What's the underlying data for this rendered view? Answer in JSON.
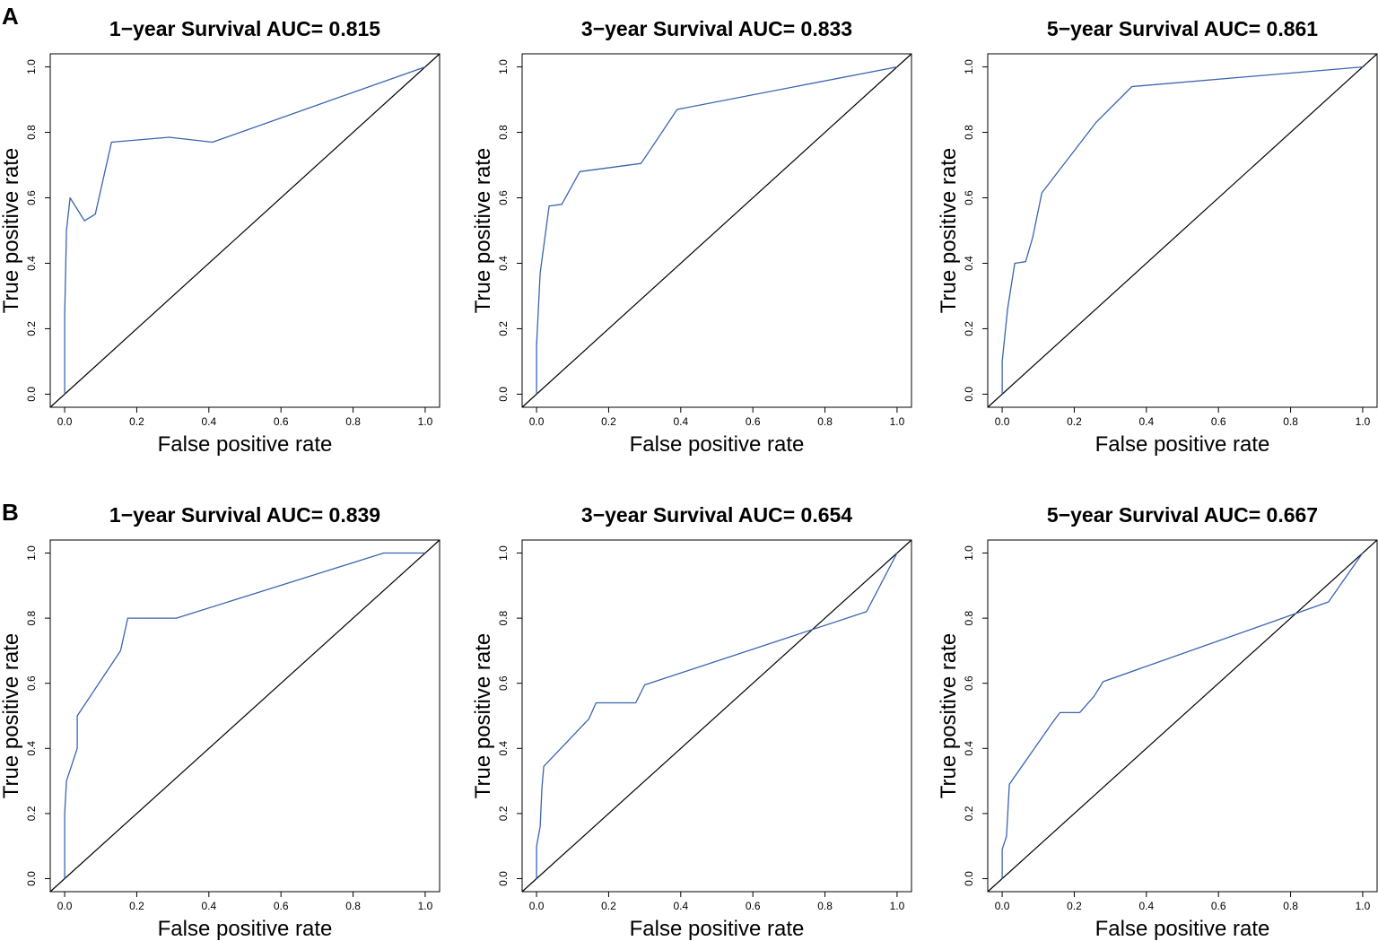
{
  "panel_labels": [
    "A",
    "B"
  ],
  "chart_data": [
    {
      "type": "line",
      "panel": "A",
      "title": "1−year Survival AUC= 0.815",
      "xlabel": "False positive rate",
      "ylabel": "True positive rate",
      "xlim": [
        0,
        1
      ],
      "ylim": [
        0,
        1
      ],
      "xticks": [
        "0.0",
        "0.2",
        "0.4",
        "0.6",
        "0.8",
        "1.0"
      ],
      "yticks": [
        "0.0",
        "0.2",
        "0.4",
        "0.6",
        "0.8",
        "1.0"
      ],
      "color": "#3a64b0",
      "series": [
        {
          "name": "ROC",
          "x": [
            0,
            0,
            0.005,
            0.015,
            0.055,
            0.085,
            0.13,
            0.29,
            0.41,
            1.0
          ],
          "y": [
            0,
            0.24,
            0.5,
            0.6,
            0.53,
            0.55,
            0.77,
            0.785,
            0.77,
            1.0
          ]
        }
      ]
    },
    {
      "type": "line",
      "panel": "A",
      "title": "3−year Survival AUC= 0.833",
      "xlabel": "False positive rate",
      "ylabel": "True positive rate",
      "xlim": [
        0,
        1
      ],
      "ylim": [
        0,
        1
      ],
      "xticks": [
        "0.0",
        "0.2",
        "0.4",
        "0.6",
        "0.8",
        "1.0"
      ],
      "yticks": [
        "0.0",
        "0.2",
        "0.4",
        "0.6",
        "0.8",
        "1.0"
      ],
      "color": "#3a64b0",
      "series": [
        {
          "name": "ROC",
          "x": [
            0,
            0,
            0.01,
            0.035,
            0.07,
            0.12,
            0.29,
            0.39,
            1.0
          ],
          "y": [
            0,
            0.15,
            0.37,
            0.575,
            0.58,
            0.68,
            0.705,
            0.87,
            1.0
          ]
        }
      ]
    },
    {
      "type": "line",
      "panel": "A",
      "title": "5−year Survival AUC= 0.861",
      "xlabel": "False positive rate",
      "ylabel": "True positive rate",
      "xlim": [
        0,
        1
      ],
      "ylim": [
        0,
        1
      ],
      "xticks": [
        "0.0",
        "0.2",
        "0.4",
        "0.6",
        "0.8",
        "1.0"
      ],
      "yticks": [
        "0.0",
        "0.2",
        "0.4",
        "0.6",
        "0.8",
        "1.0"
      ],
      "color": "#3a64b0",
      "series": [
        {
          "name": "ROC",
          "x": [
            0,
            0,
            0.015,
            0.035,
            0.065,
            0.085,
            0.11,
            0.26,
            0.36,
            1.0
          ],
          "y": [
            0,
            0.1,
            0.26,
            0.4,
            0.405,
            0.48,
            0.615,
            0.83,
            0.94,
            1.0
          ]
        }
      ]
    },
    {
      "type": "line",
      "panel": "B",
      "title": "1−year Survival AUC= 0.839",
      "xlabel": "False positive rate",
      "ylabel": "True positive rate",
      "xlim": [
        0,
        1
      ],
      "ylim": [
        0,
        1
      ],
      "xticks": [
        "0.0",
        "0.2",
        "0.4",
        "0.6",
        "0.8",
        "1.0"
      ],
      "yticks": [
        "0.0",
        "0.2",
        "0.4",
        "0.6",
        "0.8",
        "1.0"
      ],
      "color": "#3a64b0",
      "series": [
        {
          "name": "ROC",
          "x": [
            0,
            0,
            0.005,
            0.02,
            0.035,
            0.035,
            0.155,
            0.175,
            0.31,
            0.885,
            1.0
          ],
          "y": [
            0,
            0.2,
            0.3,
            0.35,
            0.4,
            0.5,
            0.7,
            0.8,
            0.8,
            1.0,
            1.0
          ]
        }
      ]
    },
    {
      "type": "line",
      "panel": "B",
      "title": "3−year Survival AUC= 0.654",
      "xlabel": "False positive rate",
      "ylabel": "True positive rate",
      "xlim": [
        0,
        1
      ],
      "ylim": [
        0,
        1
      ],
      "xticks": [
        "0.0",
        "0.2",
        "0.4",
        "0.6",
        "0.8",
        "1.0"
      ],
      "yticks": [
        "0.0",
        "0.2",
        "0.4",
        "0.6",
        "0.8",
        "1.0"
      ],
      "color": "#3a64b0",
      "series": [
        {
          "name": "ROC",
          "x": [
            0,
            0,
            0.01,
            0.015,
            0.02,
            0.145,
            0.165,
            0.275,
            0.3,
            0.915,
            1.0
          ],
          "y": [
            0,
            0.1,
            0.16,
            0.28,
            0.345,
            0.49,
            0.54,
            0.54,
            0.595,
            0.82,
            1.0
          ]
        }
      ]
    },
    {
      "type": "line",
      "panel": "B",
      "title": "5−year Survival AUC= 0.667",
      "xlabel": "False positive rate",
      "ylabel": "True positive rate",
      "xlim": [
        0,
        1
      ],
      "ylim": [
        0,
        1
      ],
      "xticks": [
        "0.0",
        "0.2",
        "0.4",
        "0.6",
        "0.8",
        "1.0"
      ],
      "yticks": [
        "0.0",
        "0.2",
        "0.4",
        "0.6",
        "0.8",
        "1.0"
      ],
      "color": "#3a64b0",
      "series": [
        {
          "name": "ROC",
          "x": [
            0,
            0,
            0.012,
            0.02,
            0.14,
            0.16,
            0.215,
            0.255,
            0.28,
            0.905,
            1.0
          ],
          "y": [
            0,
            0.09,
            0.13,
            0.29,
            0.48,
            0.51,
            0.51,
            0.56,
            0.605,
            0.85,
            1.0
          ]
        }
      ]
    }
  ]
}
